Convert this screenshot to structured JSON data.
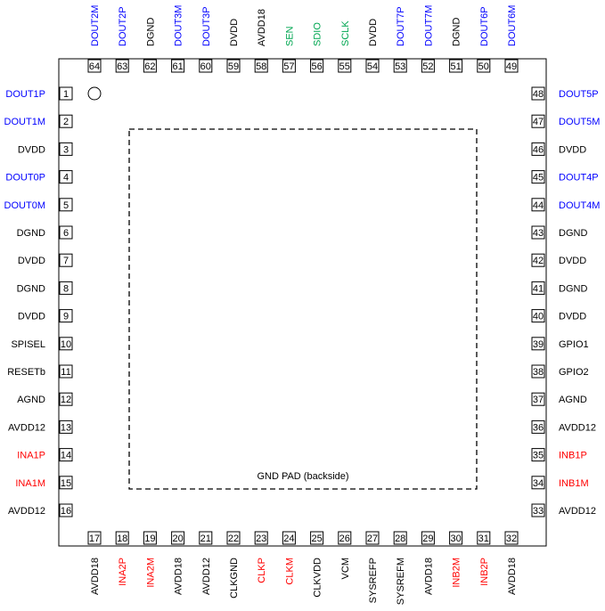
{
  "colors": {
    "black": "#000000",
    "blue": "#0000ff",
    "green": "#00a651",
    "red": "#ff0000"
  },
  "pad_label": "GND PAD (backside)",
  "pins": [
    {
      "num": "1",
      "name": "DOUT1P",
      "color": "blue"
    },
    {
      "num": "2",
      "name": "DOUT1M",
      "color": "blue"
    },
    {
      "num": "3",
      "name": "DVDD",
      "color": "black"
    },
    {
      "num": "4",
      "name": "DOUT0P",
      "color": "blue"
    },
    {
      "num": "5",
      "name": "DOUT0M",
      "color": "blue"
    },
    {
      "num": "6",
      "name": "DGND",
      "color": "black"
    },
    {
      "num": "7",
      "name": "DVDD",
      "color": "black"
    },
    {
      "num": "8",
      "name": "DGND",
      "color": "black"
    },
    {
      "num": "9",
      "name": "DVDD",
      "color": "black"
    },
    {
      "num": "10",
      "name": "SPISEL",
      "color": "black"
    },
    {
      "num": "11",
      "name": "RESETb",
      "color": "black"
    },
    {
      "num": "12",
      "name": "AGND",
      "color": "black"
    },
    {
      "num": "13",
      "name": "AVDD12",
      "color": "black"
    },
    {
      "num": "14",
      "name": "INA1P",
      "color": "red"
    },
    {
      "num": "15",
      "name": "INA1M",
      "color": "red"
    },
    {
      "num": "16",
      "name": "AVDD12",
      "color": "black"
    },
    {
      "num": "17",
      "name": "AVDD18",
      "color": "black"
    },
    {
      "num": "18",
      "name": "INA2P",
      "color": "red"
    },
    {
      "num": "19",
      "name": "INA2M",
      "color": "red"
    },
    {
      "num": "20",
      "name": "AVDD18",
      "color": "black"
    },
    {
      "num": "21",
      "name": "AVDD12",
      "color": "black"
    },
    {
      "num": "22",
      "name": "CLKGND",
      "color": "black"
    },
    {
      "num": "23",
      "name": "CLKP",
      "color": "red"
    },
    {
      "num": "24",
      "name": "CLKM",
      "color": "red"
    },
    {
      "num": "25",
      "name": "CLKVDD",
      "color": "black"
    },
    {
      "num": "26",
      "name": "VCM",
      "color": "black"
    },
    {
      "num": "27",
      "name": "SYSREFP",
      "color": "black"
    },
    {
      "num": "28",
      "name": "SYSREFM",
      "color": "black"
    },
    {
      "num": "29",
      "name": "AVDD18",
      "color": "black"
    },
    {
      "num": "30",
      "name": "INB2M",
      "color": "red"
    },
    {
      "num": "31",
      "name": "INB2P",
      "color": "red"
    },
    {
      "num": "32",
      "name": "AVDD18",
      "color": "black"
    },
    {
      "num": "33",
      "name": "AVDD12",
      "color": "black"
    },
    {
      "num": "34",
      "name": "INB1M",
      "color": "red"
    },
    {
      "num": "35",
      "name": "INB1P",
      "color": "red"
    },
    {
      "num": "36",
      "name": "AVDD12",
      "color": "black"
    },
    {
      "num": "37",
      "name": "AGND",
      "color": "black"
    },
    {
      "num": "38",
      "name": "GPIO2",
      "color": "black"
    },
    {
      "num": "39",
      "name": "GPIO1",
      "color": "black"
    },
    {
      "num": "40",
      "name": "DVDD",
      "color": "black"
    },
    {
      "num": "41",
      "name": "DGND",
      "color": "black"
    },
    {
      "num": "42",
      "name": "DVDD",
      "color": "black"
    },
    {
      "num": "43",
      "name": "DGND",
      "color": "black"
    },
    {
      "num": "44",
      "name": "DOUT4M",
      "color": "blue"
    },
    {
      "num": "45",
      "name": "DOUT4P",
      "color": "blue"
    },
    {
      "num": "46",
      "name": "DVDD",
      "color": "black"
    },
    {
      "num": "47",
      "name": "DOUT5M",
      "color": "blue"
    },
    {
      "num": "48",
      "name": "DOUT5P",
      "color": "blue"
    },
    {
      "num": "49",
      "name": "DOUT6M",
      "color": "blue"
    },
    {
      "num": "50",
      "name": "DOUT6P",
      "color": "blue"
    },
    {
      "num": "51",
      "name": "DGND",
      "color": "black"
    },
    {
      "num": "52",
      "name": "DOUT7M",
      "color": "blue"
    },
    {
      "num": "53",
      "name": "DOUT7P",
      "color": "blue"
    },
    {
      "num": "54",
      "name": "DVDD",
      "color": "black"
    },
    {
      "num": "55",
      "name": "SCLK",
      "color": "green"
    },
    {
      "num": "56",
      "name": "SDIO",
      "color": "green"
    },
    {
      "num": "57",
      "name": "SEN",
      "color": "green"
    },
    {
      "num": "58",
      "name": "AVDD18",
      "color": "black"
    },
    {
      "num": "59",
      "name": "DVDD",
      "color": "black"
    },
    {
      "num": "60",
      "name": "DOUT3P",
      "color": "blue"
    },
    {
      "num": "61",
      "name": "DOUT3M",
      "color": "blue"
    },
    {
      "num": "62",
      "name": "DGND",
      "color": "black"
    },
    {
      "num": "63",
      "name": "DOUT2P",
      "color": "blue"
    },
    {
      "num": "64",
      "name": "DOUT2M",
      "color": "blue"
    }
  ]
}
